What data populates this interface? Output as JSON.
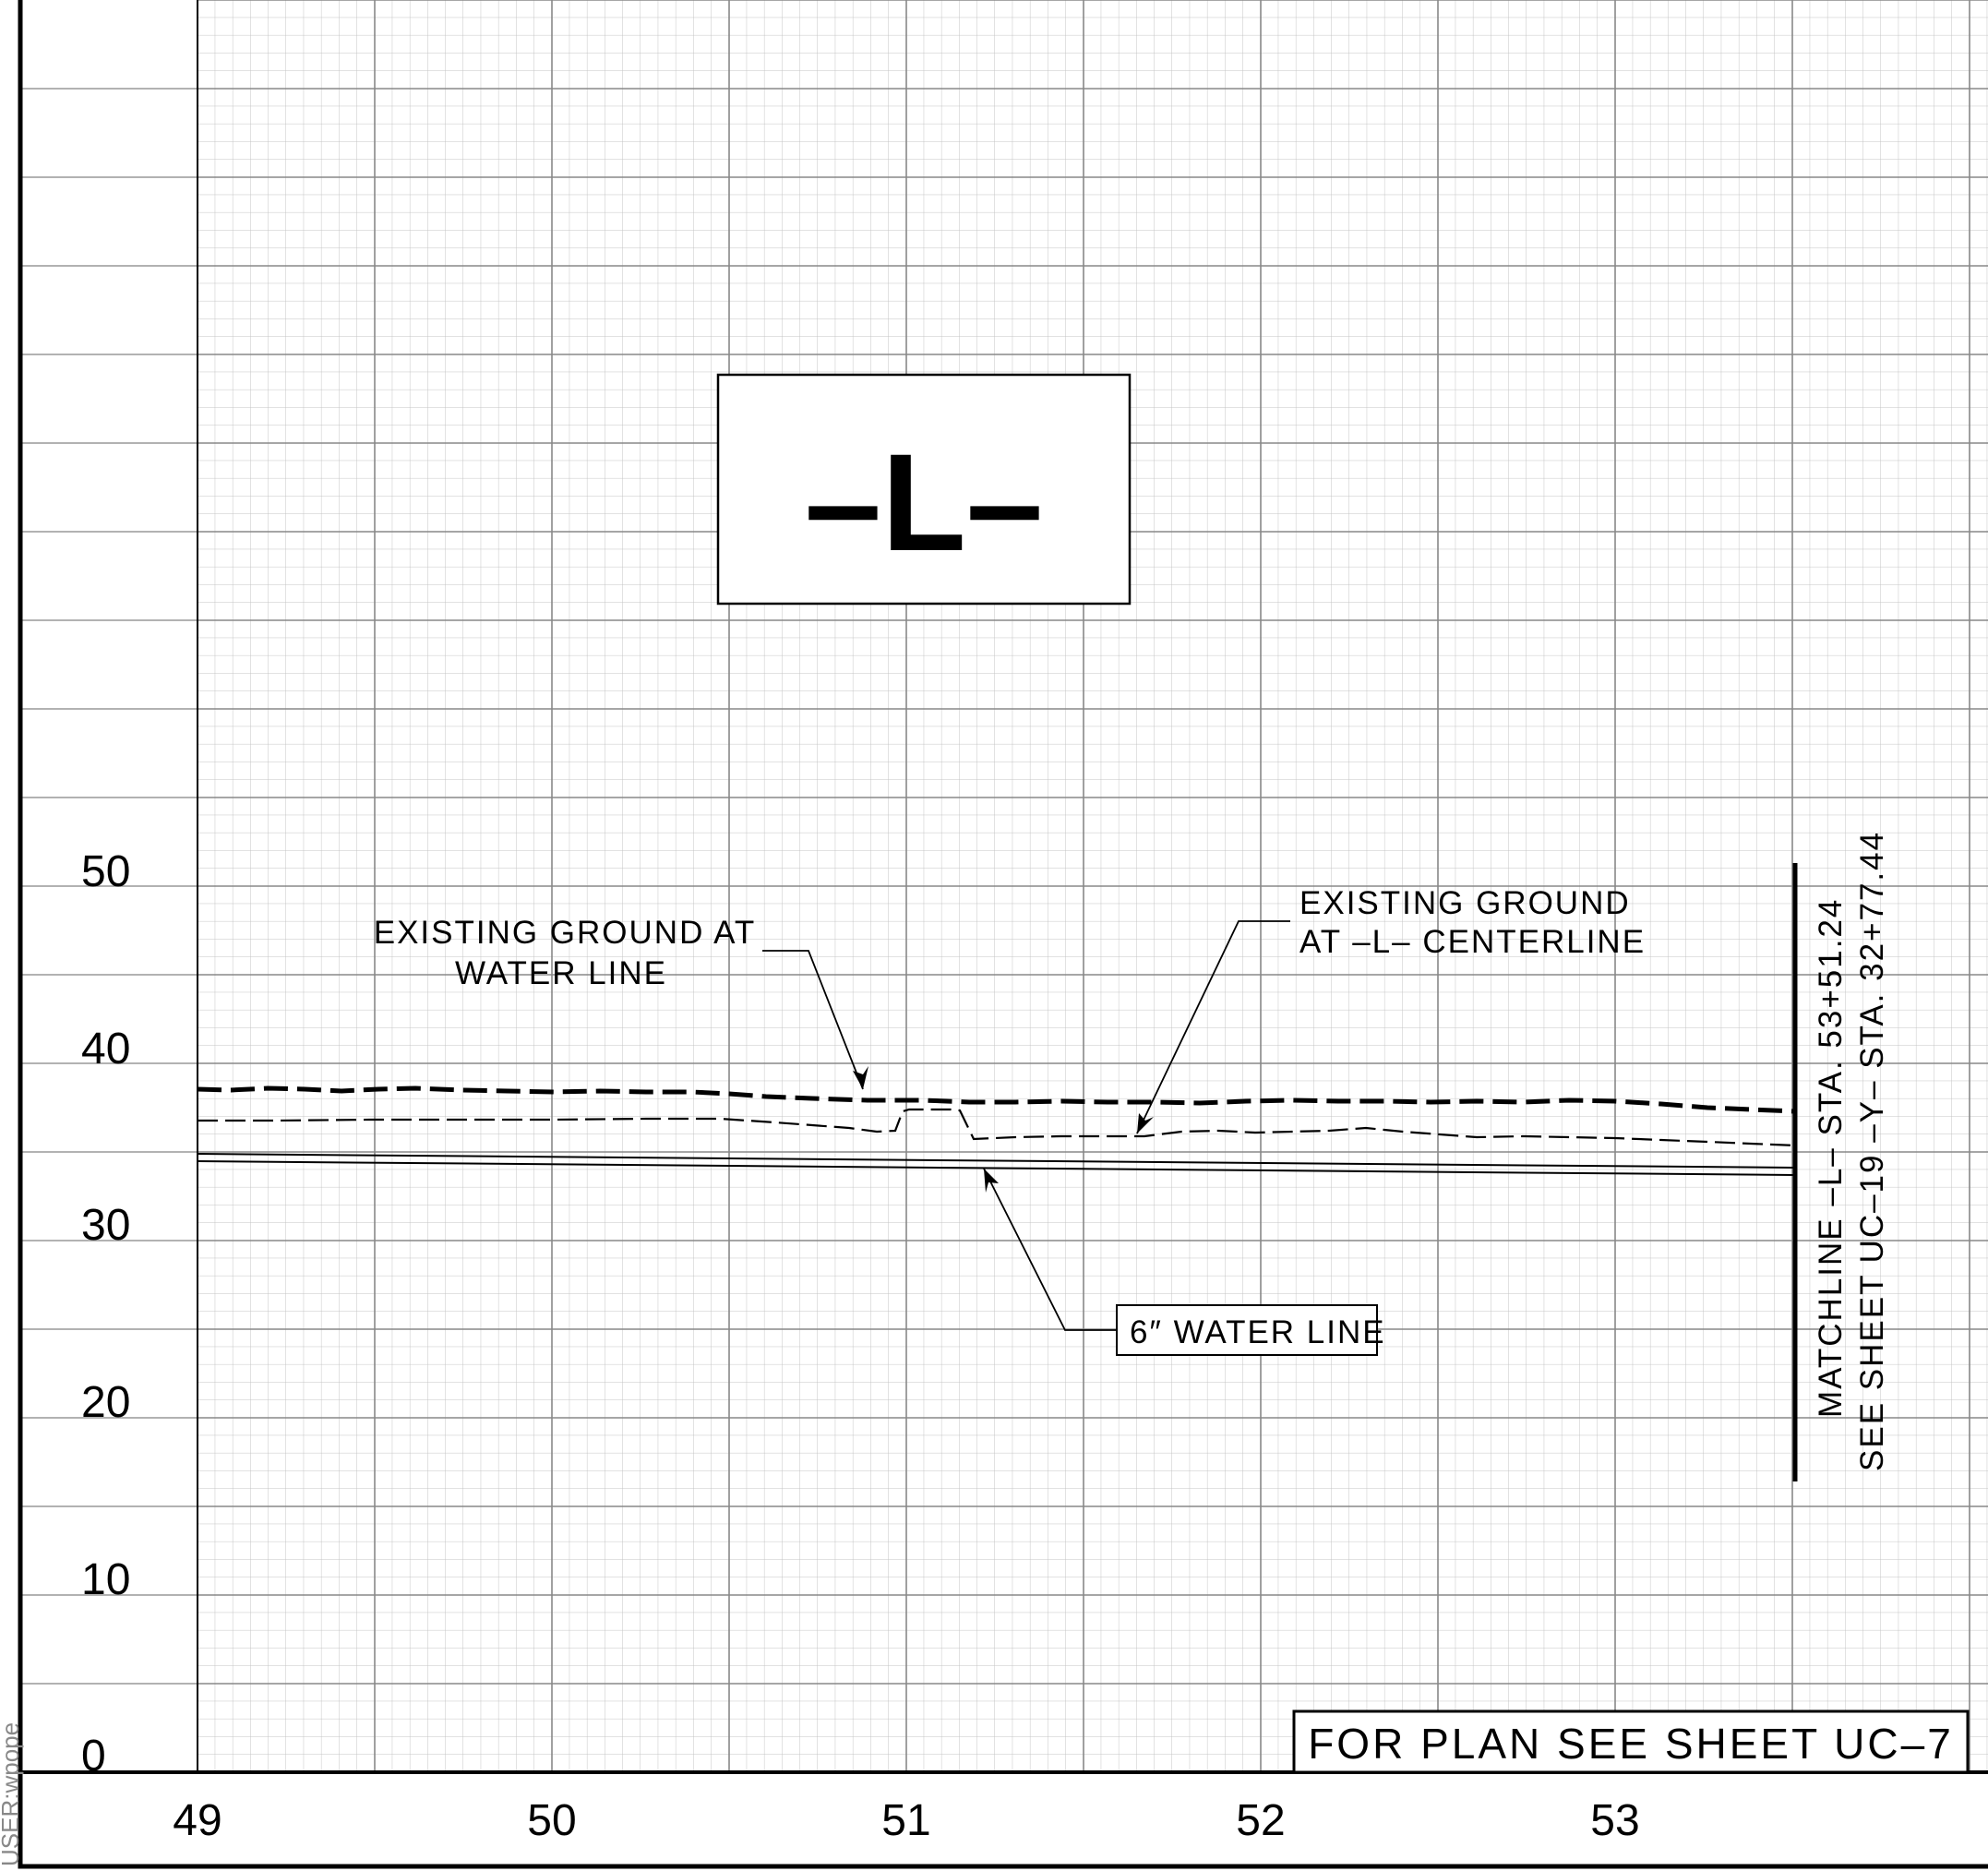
{
  "profile_title": "–L–",
  "plan_reference": "FOR PLAN SEE SHEET UC–7",
  "user_stamp": "USER:wpope",
  "elevation_labels": [
    "0",
    "10",
    "20",
    "30",
    "40",
    "50"
  ],
  "station_labels": [
    "49",
    "50",
    "51",
    "52",
    "53"
  ],
  "callouts": {
    "ground_at_water_line": [
      "EXISTING GROUND AT",
      "WATER LINE"
    ],
    "ground_at_centerline": [
      "EXISTING GROUND",
      "AT –L– CENTERLINE"
    ],
    "water_line": "6″ WATER LINE"
  },
  "matchline": [
    "MATCHLINE –L– STA. 53+51.24",
    "SEE SHEET UC–19 –Y– STA. 32+77.44"
  ]
}
